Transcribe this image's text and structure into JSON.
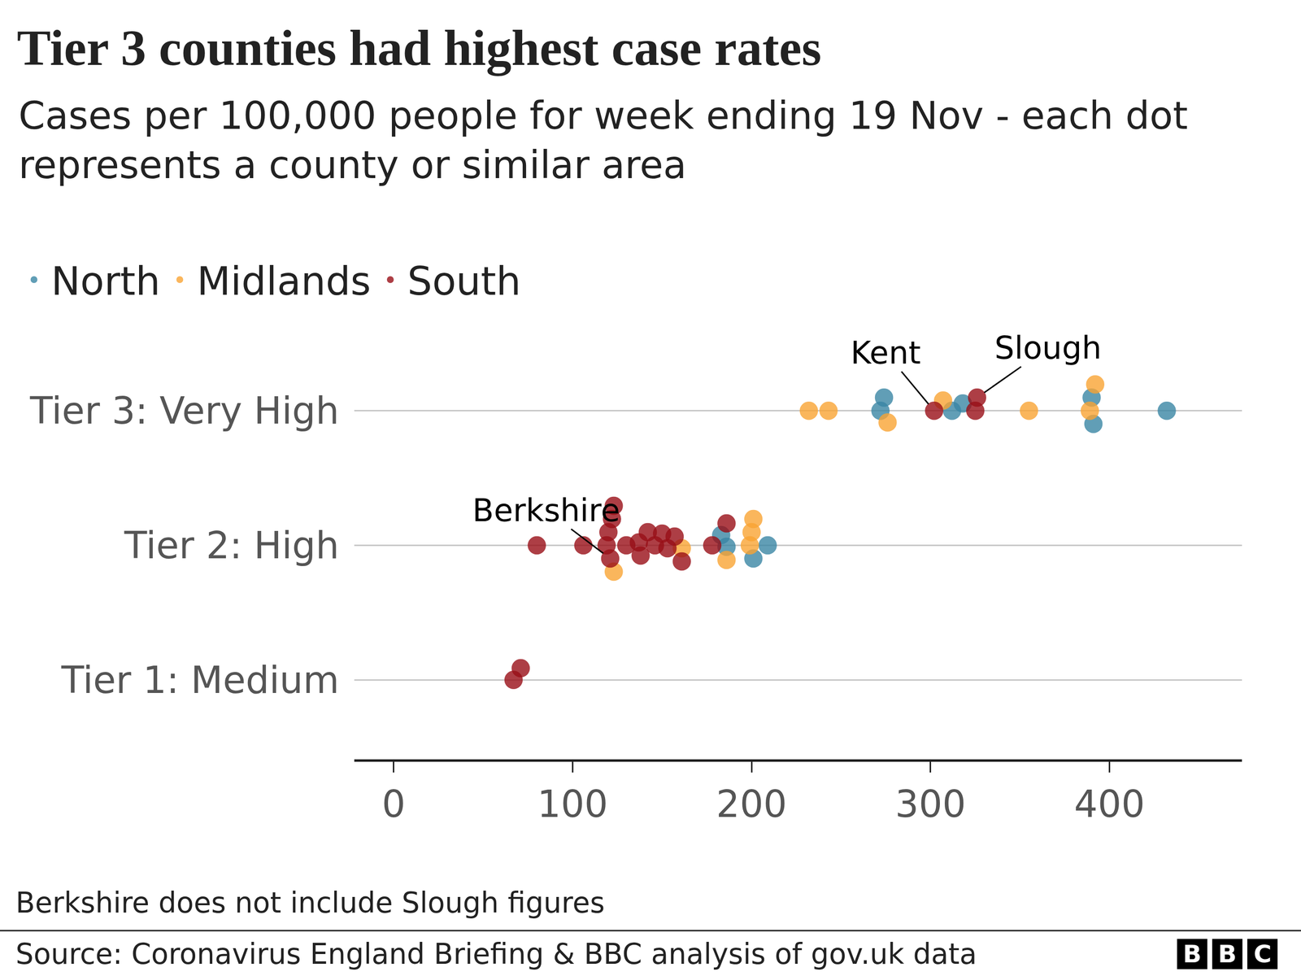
{
  "chart_data": {
    "type": "scatter",
    "title": "Tier 3 counties had highest case rates",
    "subtitle": "Cases per 100,000 people for week ending 19 Nov - each dot represents a county or similar area",
    "categories": [
      "Tier 3: Very High",
      "Tier 2: High",
      "Tier 1: Medium"
    ],
    "series": [
      {
        "name": "North",
        "color": "#3a86a5",
        "marker": "circle",
        "values": [
          [
            272,
            274,
            312,
            318,
            390,
            391,
            432
          ],
          [
            183,
            186,
            201,
            209
          ],
          []
        ]
      },
      {
        "name": "Midlands",
        "color": "#f9a434",
        "marker": "circle",
        "values": [
          [
            232,
            243,
            276,
            307,
            355,
            389,
            392
          ],
          [
            123,
            161,
            186,
            199,
            200,
            201
          ],
          []
        ]
      },
      {
        "name": "South",
        "color": "#990f17",
        "marker": "circle",
        "values": [
          [
            302,
            325,
            326
          ],
          [
            80,
            106,
            119,
            120,
            121,
            122,
            123,
            130,
            137,
            138,
            142,
            146,
            150,
            153,
            157,
            161,
            178,
            186
          ],
          [
            67,
            71
          ]
        ]
      }
    ],
    "annotations": [
      {
        "text": "Kent",
        "category": "Tier 3: Very High",
        "x": 302
      },
      {
        "text": "Slough",
        "category": "Tier 3: Very High",
        "x": 326
      },
      {
        "text": "Berkshire",
        "category": "Tier 2: High",
        "x": 121
      }
    ],
    "xlim": [
      -22,
      474
    ],
    "xticks": [
      0,
      100,
      200,
      300,
      400
    ],
    "grid": true,
    "legend": "top-left",
    "footnote": "Berkshire does not include Slough figures",
    "source": "Source: Coronavirus England Briefing & BBC analysis of gov.uk data",
    "logo": "BBC"
  }
}
